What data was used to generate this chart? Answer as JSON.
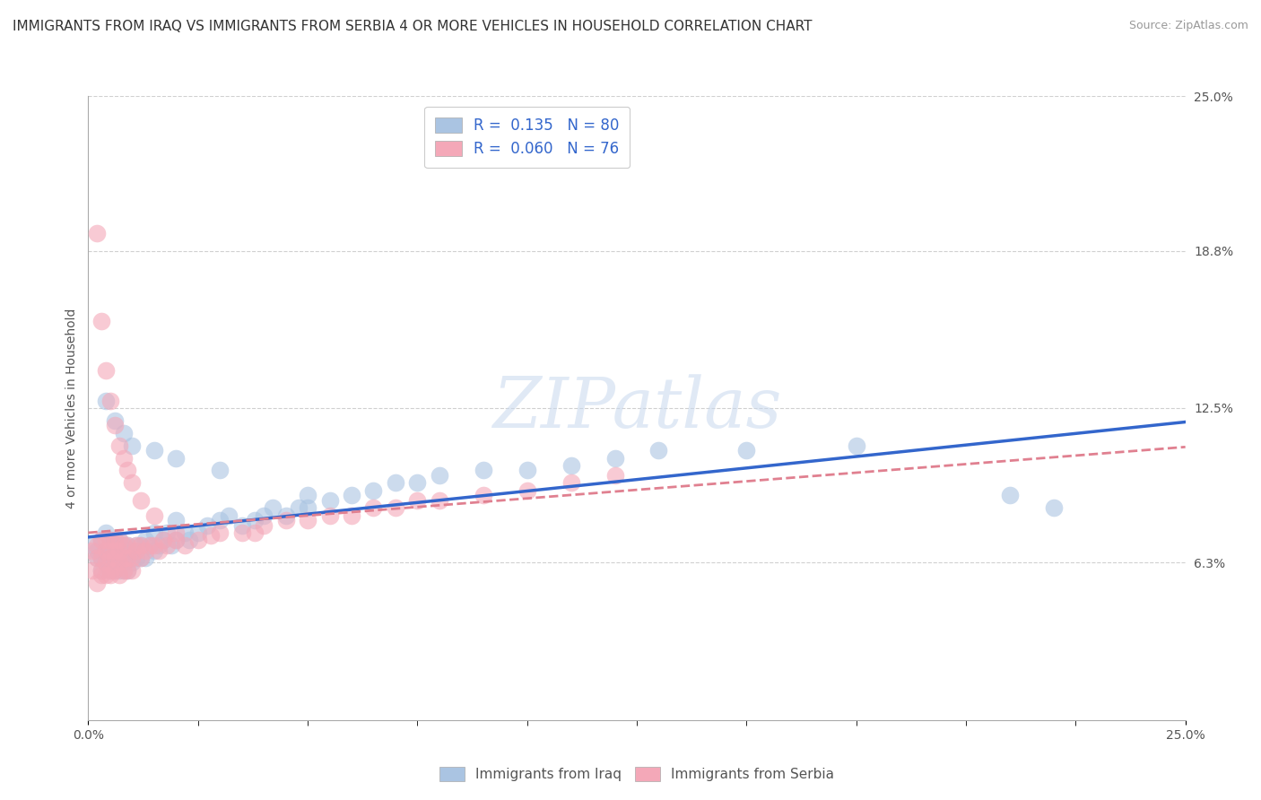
{
  "title": "IMMIGRANTS FROM IRAQ VS IMMIGRANTS FROM SERBIA 4 OR MORE VEHICLES IN HOUSEHOLD CORRELATION CHART",
  "source": "Source: ZipAtlas.com",
  "ylabel": "4 or more Vehicles in Household",
  "xlim": [
    0.0,
    0.25
  ],
  "ylim": [
    0.0,
    0.25
  ],
  "ytick_positions": [
    0.063,
    0.125,
    0.188,
    0.25
  ],
  "ytick_labels": [
    "6.3%",
    "12.5%",
    "18.8%",
    "25.0%"
  ],
  "iraq_R": "0.135",
  "iraq_N": "80",
  "serbia_R": "0.060",
  "serbia_N": "76",
  "iraq_color": "#aac4e2",
  "serbia_color": "#f4a8b8",
  "iraq_line_color": "#3366cc",
  "serbia_line_color": "#e08090",
  "watermark_text": "ZIPatlas",
  "background_color": "#ffffff",
  "grid_color": "#d0d0d0",
  "title_fontsize": 11,
  "iraq_x": [
    0.001,
    0.002,
    0.002,
    0.003,
    0.003,
    0.003,
    0.004,
    0.004,
    0.004,
    0.005,
    0.005,
    0.005,
    0.005,
    0.006,
    0.006,
    0.006,
    0.006,
    0.007,
    0.007,
    0.007,
    0.007,
    0.008,
    0.008,
    0.008,
    0.009,
    0.009,
    0.009,
    0.01,
    0.01,
    0.011,
    0.011,
    0.012,
    0.012,
    0.013,
    0.013,
    0.014,
    0.015,
    0.015,
    0.016,
    0.017,
    0.018,
    0.019,
    0.02,
    0.02,
    0.022,
    0.023,
    0.025,
    0.027,
    0.03,
    0.032,
    0.035,
    0.038,
    0.04,
    0.042,
    0.045,
    0.048,
    0.05,
    0.055,
    0.06,
    0.065,
    0.07,
    0.075,
    0.08,
    0.09,
    0.1,
    0.11,
    0.12,
    0.13,
    0.15,
    0.175,
    0.004,
    0.006,
    0.008,
    0.01,
    0.015,
    0.02,
    0.03,
    0.05,
    0.21,
    0.22
  ],
  "iraq_y": [
    0.07,
    0.065,
    0.068,
    0.06,
    0.065,
    0.072,
    0.063,
    0.068,
    0.075,
    0.06,
    0.065,
    0.07,
    0.072,
    0.06,
    0.065,
    0.068,
    0.072,
    0.06,
    0.063,
    0.068,
    0.072,
    0.06,
    0.065,
    0.07,
    0.06,
    0.065,
    0.07,
    0.063,
    0.068,
    0.065,
    0.07,
    0.065,
    0.07,
    0.065,
    0.072,
    0.07,
    0.068,
    0.075,
    0.07,
    0.072,
    0.075,
    0.07,
    0.072,
    0.08,
    0.075,
    0.072,
    0.075,
    0.078,
    0.08,
    0.082,
    0.078,
    0.08,
    0.082,
    0.085,
    0.082,
    0.085,
    0.085,
    0.088,
    0.09,
    0.092,
    0.095,
    0.095,
    0.098,
    0.1,
    0.1,
    0.102,
    0.105,
    0.108,
    0.108,
    0.11,
    0.128,
    0.12,
    0.115,
    0.11,
    0.108,
    0.105,
    0.1,
    0.09,
    0.09,
    0.085
  ],
  "serbia_x": [
    0.001,
    0.001,
    0.002,
    0.002,
    0.002,
    0.003,
    0.003,
    0.003,
    0.003,
    0.004,
    0.004,
    0.004,
    0.004,
    0.005,
    0.005,
    0.005,
    0.005,
    0.005,
    0.006,
    0.006,
    0.006,
    0.006,
    0.007,
    0.007,
    0.007,
    0.007,
    0.008,
    0.008,
    0.008,
    0.009,
    0.009,
    0.009,
    0.01,
    0.01,
    0.011,
    0.011,
    0.012,
    0.012,
    0.013,
    0.014,
    0.015,
    0.016,
    0.017,
    0.018,
    0.02,
    0.022,
    0.025,
    0.028,
    0.03,
    0.035,
    0.038,
    0.04,
    0.045,
    0.05,
    0.055,
    0.06,
    0.065,
    0.07,
    0.075,
    0.08,
    0.09,
    0.1,
    0.11,
    0.12,
    0.002,
    0.003,
    0.004,
    0.005,
    0.006,
    0.007,
    0.008,
    0.009,
    0.01,
    0.012,
    0.015,
    0.02
  ],
  "serbia_y": [
    0.06,
    0.068,
    0.055,
    0.07,
    0.065,
    0.058,
    0.065,
    0.072,
    0.06,
    0.063,
    0.068,
    0.072,
    0.058,
    0.06,
    0.065,
    0.068,
    0.072,
    0.058,
    0.06,
    0.065,
    0.068,
    0.072,
    0.058,
    0.063,
    0.068,
    0.072,
    0.06,
    0.065,
    0.07,
    0.06,
    0.065,
    0.07,
    0.06,
    0.065,
    0.068,
    0.07,
    0.065,
    0.07,
    0.068,
    0.07,
    0.07,
    0.068,
    0.072,
    0.07,
    0.072,
    0.07,
    0.072,
    0.074,
    0.075,
    0.075,
    0.075,
    0.078,
    0.08,
    0.08,
    0.082,
    0.082,
    0.085,
    0.085,
    0.088,
    0.088,
    0.09,
    0.092,
    0.095,
    0.098,
    0.195,
    0.16,
    0.14,
    0.128,
    0.118,
    0.11,
    0.105,
    0.1,
    0.095,
    0.088,
    0.082,
    0.075
  ]
}
